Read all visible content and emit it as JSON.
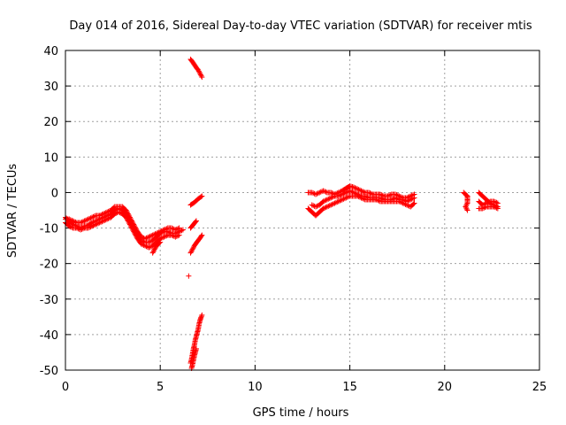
{
  "chart_data": {
    "type": "scatter",
    "title": "Day 014 of 2016, Sidereal Day-to-day VTEC variation (SDTVAR) for receiver mtis",
    "xlabel": "GPS time / hours",
    "ylabel": "SDTVAR / TECUs",
    "xlim": [
      0,
      25
    ],
    "ylim": [
      -50,
      40
    ],
    "xticks": [
      0,
      5,
      10,
      15,
      20,
      25
    ],
    "yticks": [
      -50,
      -40,
      -30,
      -20,
      -10,
      0,
      10,
      20,
      30,
      40
    ],
    "grid": true,
    "legend": "none",
    "marker": "+",
    "color": "#ff0000",
    "series": [
      {
        "segments": [
          [
            [
              0.0,
              -7
            ],
            [
              0.2,
              -8
            ],
            [
              0.4,
              -9
            ],
            [
              0.6,
              -9.5
            ],
            [
              0.8,
              -10
            ],
            [
              1.0,
              -9.5
            ],
            [
              1.2,
              -9.2
            ],
            [
              1.4,
              -8.5
            ],
            [
              1.6,
              -8
            ],
            [
              1.8,
              -7.5
            ],
            [
              2.0,
              -7
            ],
            [
              2.2,
              -6.5
            ],
            [
              2.4,
              -6
            ],
            [
              2.6,
              -5
            ],
            [
              2.8,
              -4.5
            ],
            [
              3.0,
              -5
            ],
            [
              3.2,
              -6
            ],
            [
              3.4,
              -8
            ],
            [
              3.6,
              -10
            ],
            [
              3.8,
              -12
            ],
            [
              4.0,
              -13.5
            ],
            [
              4.2,
              -14
            ],
            [
              4.4,
              -14
            ],
            [
              4.6,
              -13.5
            ],
            [
              4.8,
              -12.5
            ],
            [
              5.0,
              -11.5
            ],
            [
              5.2,
              -11
            ],
            [
              5.4,
              -11
            ],
            [
              5.6,
              -11.5
            ],
            [
              5.8,
              -11.5
            ],
            [
              6.0,
              -11
            ],
            [
              6.2,
              -10.5
            ]
          ],
          [
            [
              0.0,
              -7.5
            ],
            [
              0.2,
              -7.5
            ],
            [
              0.4,
              -8
            ],
            [
              0.6,
              -8.5
            ],
            [
              0.8,
              -8.5
            ],
            [
              1.0,
              -8
            ],
            [
              1.2,
              -7.5
            ],
            [
              1.4,
              -7
            ],
            [
              1.6,
              -6.5
            ],
            [
              1.8,
              -6.5
            ],
            [
              2.0,
              -6
            ],
            [
              2.2,
              -5.5
            ],
            [
              2.4,
              -5
            ],
            [
              2.6,
              -4
            ],
            [
              2.8,
              -4
            ],
            [
              3.0,
              -4
            ],
            [
              3.2,
              -5
            ],
            [
              3.4,
              -7
            ],
            [
              3.6,
              -9
            ],
            [
              3.8,
              -11
            ],
            [
              4.0,
              -12.5
            ],
            [
              4.2,
              -13
            ],
            [
              4.4,
              -12.5
            ],
            [
              4.6,
              -12
            ],
            [
              4.8,
              -11.5
            ],
            [
              5.0,
              -11
            ],
            [
              5.2,
              -10.5
            ],
            [
              5.4,
              -10
            ],
            [
              5.6,
              -10
            ],
            [
              5.8,
              -10.5
            ],
            [
              6.0,
              -10
            ]
          ],
          [
            [
              0.0,
              -8.5
            ],
            [
              0.2,
              -9.5
            ],
            [
              0.4,
              -10
            ],
            [
              0.6,
              -10
            ],
            [
              0.8,
              -10.5
            ],
            [
              1.0,
              -10
            ],
            [
              1.2,
              -10
            ],
            [
              1.4,
              -9.5
            ],
            [
              1.6,
              -9
            ],
            [
              1.8,
              -8.5
            ],
            [
              2.0,
              -8
            ],
            [
              2.2,
              -7.5
            ],
            [
              2.4,
              -7
            ],
            [
              2.6,
              -6
            ],
            [
              2.8,
              -5.5
            ],
            [
              3.0,
              -6
            ],
            [
              3.2,
              -7
            ],
            [
              3.4,
              -9
            ],
            [
              3.6,
              -11
            ],
            [
              3.8,
              -13
            ],
            [
              4.0,
              -14.5
            ],
            [
              4.2,
              -15
            ],
            [
              4.4,
              -15.5
            ],
            [
              4.6,
              -15
            ],
            [
              4.8,
              -14
            ],
            [
              5.0,
              -13
            ],
            [
              5.2,
              -12.5
            ],
            [
              5.4,
              -12
            ],
            [
              5.6,
              -12
            ],
            [
              5.8,
              -12.5
            ],
            [
              6.0,
              -12
            ]
          ],
          [
            [
              4.6,
              -17
            ],
            [
              4.7,
              -16
            ],
            [
              4.8,
              -15
            ],
            [
              5.0,
              -14
            ]
          ],
          [
            [
              6.6,
              -3.5
            ],
            [
              6.8,
              -2.8
            ],
            [
              7.0,
              -1.8
            ],
            [
              7.2,
              -1
            ]
          ],
          [
            [
              6.6,
              -10
            ],
            [
              6.75,
              -9
            ],
            [
              6.9,
              -8
            ]
          ],
          [
            [
              6.6,
              -17
            ],
            [
              6.7,
              -16
            ],
            [
              6.8,
              -15
            ],
            [
              6.9,
              -14.2
            ],
            [
              7.0,
              -13.5
            ],
            [
              7.1,
              -12.8
            ],
            [
              7.2,
              -12
            ]
          ],
          [
            [
              6.6,
              37.5
            ],
            [
              6.7,
              36.8
            ],
            [
              6.8,
              36
            ],
            [
              6.9,
              35.2
            ],
            [
              7.0,
              34.5
            ],
            [
              7.1,
              33.5
            ],
            [
              7.2,
              32.5
            ]
          ],
          [
            [
              6.6,
              -48
            ],
            [
              6.65,
              -47
            ],
            [
              6.7,
              -45.5
            ],
            [
              6.75,
              -44
            ],
            [
              6.8,
              -43
            ],
            [
              6.85,
              -41.5
            ],
            [
              6.9,
              -40.5
            ],
            [
              6.95,
              -39.5
            ],
            [
              7.0,
              -38.5
            ],
            [
              7.05,
              -37
            ],
            [
              7.1,
              -36
            ],
            [
              7.15,
              -35.2
            ],
            [
              7.2,
              -34.5
            ]
          ],
          [
            [
              6.65,
              -49.5
            ],
            [
              6.7,
              -48.5
            ],
            [
              6.8,
              -46
            ],
            [
              6.9,
              -44
            ]
          ],
          [
            [
              6.5,
              -23.5
            ]
          ],
          [
            [
              12.8,
              0
            ],
            [
              13.0,
              0
            ],
            [
              13.2,
              -0.5
            ],
            [
              13.4,
              0
            ],
            [
              13.6,
              0.5
            ],
            [
              13.8,
              0
            ],
            [
              14.0,
              0
            ],
            [
              14.2,
              -0.5
            ],
            [
              14.4,
              0
            ],
            [
              14.6,
              0.5
            ],
            [
              14.8,
              1.2
            ],
            [
              15.0,
              1.8
            ],
            [
              15.2,
              1.5
            ],
            [
              15.4,
              1
            ],
            [
              15.6,
              0.5
            ],
            [
              15.8,
              0
            ],
            [
              16.0,
              0
            ],
            [
              16.2,
              -0.5
            ],
            [
              16.4,
              -0.5
            ],
            [
              16.6,
              -0.5
            ],
            [
              16.8,
              -1
            ],
            [
              17.0,
              -1
            ],
            [
              17.2,
              -0.5
            ],
            [
              17.4,
              -0.5
            ],
            [
              17.6,
              -1
            ],
            [
              17.8,
              -1.5
            ],
            [
              18.0,
              -1.5
            ],
            [
              18.2,
              -1
            ],
            [
              18.4,
              -0.5
            ]
          ],
          [
            [
              12.8,
              -4.5
            ],
            [
              13.0,
              -5.5
            ],
            [
              13.2,
              -6.5
            ],
            [
              13.4,
              -5.5
            ],
            [
              13.6,
              -4.5
            ],
            [
              13.8,
              -4
            ],
            [
              14.0,
              -3.5
            ],
            [
              14.2,
              -3
            ],
            [
              14.4,
              -2.5
            ],
            [
              14.6,
              -2
            ],
            [
              14.8,
              -1.5
            ],
            [
              15.0,
              -1
            ],
            [
              15.2,
              -1
            ],
            [
              15.4,
              -1
            ],
            [
              15.6,
              -1.5
            ],
            [
              15.8,
              -2
            ],
            [
              16.0,
              -2
            ],
            [
              16.2,
              -2
            ],
            [
              16.4,
              -2
            ],
            [
              16.6,
              -2.5
            ],
            [
              16.8,
              -2.5
            ],
            [
              17.0,
              -2.5
            ],
            [
              17.2,
              -2.5
            ],
            [
              17.4,
              -2.5
            ],
            [
              17.6,
              -2.5
            ],
            [
              17.8,
              -3
            ],
            [
              18.0,
              -3.5
            ],
            [
              18.2,
              -4
            ],
            [
              18.4,
              -3
            ]
          ],
          [
            [
              13.0,
              -3.5
            ],
            [
              13.2,
              -4
            ],
            [
              13.4,
              -3.5
            ],
            [
              13.6,
              -2.5
            ],
            [
              13.8,
              -2
            ],
            [
              14.0,
              -1.5
            ],
            [
              14.2,
              -1
            ],
            [
              14.4,
              -1
            ],
            [
              14.6,
              -0.5
            ],
            [
              14.8,
              0
            ],
            [
              15.0,
              0.5
            ],
            [
              15.2,
              0
            ],
            [
              15.4,
              -0.5
            ],
            [
              15.6,
              -1
            ],
            [
              15.8,
              -1
            ],
            [
              16.0,
              -1.5
            ],
            [
              16.2,
              -1.5
            ],
            [
              16.4,
              -1.5
            ],
            [
              16.6,
              -1.5
            ],
            [
              16.8,
              -2
            ],
            [
              17.0,
              -2
            ],
            [
              17.2,
              -2
            ],
            [
              17.4,
              -1.5
            ],
            [
              17.6,
              -2
            ],
            [
              17.8,
              -2
            ],
            [
              18.0,
              -2.5
            ],
            [
              18.2,
              -2
            ],
            [
              18.4,
              -1.5
            ]
          ],
          [
            [
              21.0,
              0
            ],
            [
              21.1,
              -0.5
            ],
            [
              21.2,
              -1
            ],
            [
              21.2,
              -3
            ],
            [
              21.1,
              -4
            ],
            [
              21.2,
              -5
            ]
          ],
          [
            [
              21.8,
              0
            ],
            [
              22.0,
              -1
            ],
            [
              22.2,
              -2
            ],
            [
              22.4,
              -3
            ],
            [
              22.6,
              -3.5
            ],
            [
              22.8,
              -4
            ]
          ],
          [
            [
              21.8,
              -4.5
            ],
            [
              22.0,
              -4.5
            ],
            [
              22.2,
              -4
            ],
            [
              22.4,
              -4
            ],
            [
              22.6,
              -4
            ],
            [
              22.8,
              -4.5
            ]
          ],
          [
            [
              21.8,
              -2.5
            ],
            [
              21.9,
              -3
            ],
            [
              22.0,
              -3.5
            ],
            [
              22.2,
              -3
            ],
            [
              22.4,
              -2.5
            ],
            [
              22.6,
              -2.5
            ],
            [
              22.8,
              -3
            ]
          ]
        ]
      }
    ]
  }
}
